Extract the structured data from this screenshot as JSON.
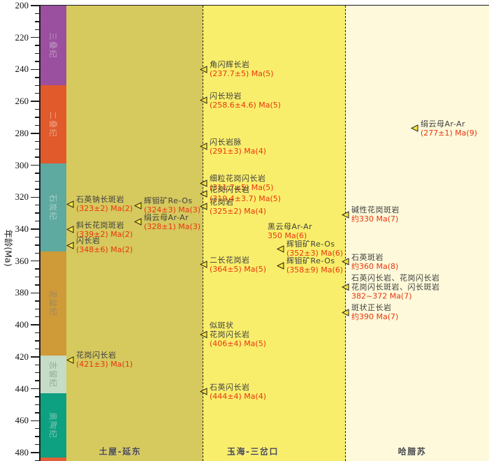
{
  "chart_data": {
    "type": "scatter",
    "title": "",
    "y_axis": {
      "label": "年龄(Ma)",
      "min": 200,
      "max": 485,
      "major_tick_step": 20,
      "minor_tick_step": 5,
      "tick_labels": [
        200,
        220,
        240,
        260,
        280,
        300,
        320,
        340,
        360,
        380,
        400,
        420,
        440,
        460,
        480
      ],
      "direction": "increasing-downward"
    },
    "colors": {
      "marker_fill": "#ffe43c",
      "marker_stroke": "#1c1c1c",
      "value_text": "#e9350f",
      "name_text": "#404040"
    },
    "geologic_periods": [
      {
        "name": "三叠纪",
        "from_ma": 200,
        "to_ma": 250,
        "color": "#9a4f9f",
        "label_color": "#c09ac3"
      },
      {
        "name": "二叠纪",
        "from_ma": 250,
        "to_ma": 299,
        "color": "#e05a2c",
        "label_color": "#efa184"
      },
      {
        "name": "石炭纪",
        "from_ma": 299,
        "to_ma": 354,
        "color": "#5ea9a0",
        "label_color": "#a9d0c7"
      },
      {
        "name": "泥盆纪",
        "from_ma": 354,
        "to_ma": 419,
        "color": "#cf9a38",
        "label_color": "#a0885a"
      },
      {
        "name": "志留纪",
        "from_ma": 419,
        "to_ma": 443,
        "color": "#c5dcc7",
        "label_color": "#8fa991"
      },
      {
        "name": "奥陶纪",
        "from_ma": 443,
        "to_ma": 483,
        "color": "#0da081",
        "label_color": "#7cc7b2"
      },
      {
        "name": "",
        "from_ma": 483,
        "to_ma": 485.5,
        "color": "#e0603a",
        "label_color": "#e0603a"
      }
    ],
    "columns": [
      {
        "id": "tuwu",
        "label": "土屋-延东",
        "bg": "#d6c95e"
      },
      {
        "id": "yuhai",
        "label": "玉海-三岔口",
        "bg": "#f9ee6b"
      },
      {
        "id": "halasu",
        "label": "哈腊苏",
        "bg": "#fdf9da"
      }
    ],
    "annotations": [
      {
        "id": "ty-1",
        "column": "tuwu",
        "name_lines": [
          "石英钠长斑岩"
        ],
        "value": "(323±2) Ma(2)",
        "age_ma": 323,
        "marker": true
      },
      {
        "id": "ty-2",
        "column": "tuwu",
        "name_lines": [
          "辉钼矿Re-Os"
        ],
        "value": "(324±3) Ma(3)",
        "age_ma": 324,
        "marker": true
      },
      {
        "id": "ty-3",
        "column": "tuwu",
        "name_lines": [
          "绢云母Ar-Ar"
        ],
        "value": "(328±1) Ma(3)",
        "age_ma": 328,
        "marker": true
      },
      {
        "id": "ty-4",
        "column": "tuwu",
        "name_lines": [
          "斜长花岗斑岩"
        ],
        "value": "(339±2) Ma(2)",
        "age_ma": 339,
        "marker": true
      },
      {
        "id": "ty-5",
        "column": "tuwu",
        "name_lines": [
          "闪长岩"
        ],
        "value": "(348±6) Ma(2)",
        "age_ma": 348,
        "marker": true
      },
      {
        "id": "ty-6",
        "column": "tuwu",
        "name_lines": [
          "花岗闪长岩"
        ],
        "value": "(421±3) Ma(1)",
        "age_ma": 421,
        "marker": true
      },
      {
        "id": "yh-1",
        "column": "yuhai",
        "name_lines": [
          "角闪辉长岩"
        ],
        "value": "(237.7±5) Ma(5)",
        "age_ma": 237.7,
        "marker": true
      },
      {
        "id": "yh-2",
        "column": "yuhai",
        "name_lines": [
          "闪长玢岩"
        ],
        "value": "(258.6±4.6) Ma(5)",
        "age_ma": 258.6,
        "marker": true
      },
      {
        "id": "yh-3",
        "column": "yuhai",
        "name_lines": [
          "闪长岩脉"
        ],
        "value": "(291±3) Ma(4)",
        "age_ma": 291,
        "marker": true
      },
      {
        "id": "yh-4",
        "column": "yuhai",
        "name_lines": [
          "细粒花岗闪长岩"
        ],
        "value": "(311.7±5) Ma(5)",
        "age_ma": 311.7,
        "marker": true
      },
      {
        "id": "yh-5",
        "column": "yuhai",
        "name_lines": [
          "花岗闪长岩"
        ],
        "value": "(319.4±3.7) Ma(5)",
        "age_ma": 319.4,
        "marker": true
      },
      {
        "id": "yh-6",
        "column": "yuhai",
        "name_lines": [
          "花岗岩"
        ],
        "value": "(325±2) Ma(4)",
        "age_ma": 325,
        "marker": true
      },
      {
        "id": "yh-7",
        "column": "yuhai",
        "name_lines": [
          "黑云母Ar-Ar"
        ],
        "value": "350 Ma(6)",
        "age_ma": 350,
        "marker": false
      },
      {
        "id": "yh-8",
        "column": "yuhai",
        "name_lines": [
          "辉钼矿Re-Os"
        ],
        "value": "(352±3) Ma(6)",
        "age_ma": 352,
        "marker": true
      },
      {
        "id": "yh-9",
        "column": "yuhai",
        "name_lines": [
          "辉钼矿Re-Os"
        ],
        "value": "(358±9) Ma(6)",
        "age_ma": 358,
        "marker": true
      },
      {
        "id": "yh-10",
        "column": "yuhai",
        "name_lines": [
          "二长花岗岩"
        ],
        "value": "(364±5) Ma(5)",
        "age_ma": 364,
        "marker": true
      },
      {
        "id": "yh-11",
        "column": "yuhai",
        "name_lines": [
          "似斑状",
          "花岗闪长岩"
        ],
        "value": "(406±4) Ma(5)",
        "age_ma": 406,
        "marker": true
      },
      {
        "id": "yh-12",
        "column": "yuhai",
        "name_lines": [
          "石英闪长岩"
        ],
        "value": "(444±4) Ma(4)",
        "age_ma": 444,
        "marker": true
      },
      {
        "id": "hls-1",
        "column": "halasu",
        "name_lines": [
          "绢云母Ar-Ar"
        ],
        "value": "(277±1) Ma(9)",
        "age_ma": 277,
        "marker": true
      },
      {
        "id": "hls-2",
        "column": "halasu",
        "name_lines": [
          "碱性花岗斑岩"
        ],
        "value": "约330 Ma(7)",
        "age_ma": 330,
        "marker": true
      },
      {
        "id": "hls-3",
        "column": "halasu",
        "name_lines": [
          "石英斑岩"
        ],
        "value": "约360 Ma(8)",
        "age_ma": 360,
        "marker": true
      },
      {
        "id": "hls-4",
        "column": "halasu",
        "name_lines": [
          "石英闪长岩、花岗闪长岩",
          "花岗闪长斑岩、闪长斑岩"
        ],
        "value": "382~372 Ma(7)",
        "age_ma": 377,
        "marker": true
      },
      {
        "id": "hls-5",
        "column": "halasu",
        "name_lines": [
          "斑状正长岩"
        ],
        "value": "约390 Ma(7)",
        "age_ma": 390,
        "marker": true
      }
    ]
  }
}
